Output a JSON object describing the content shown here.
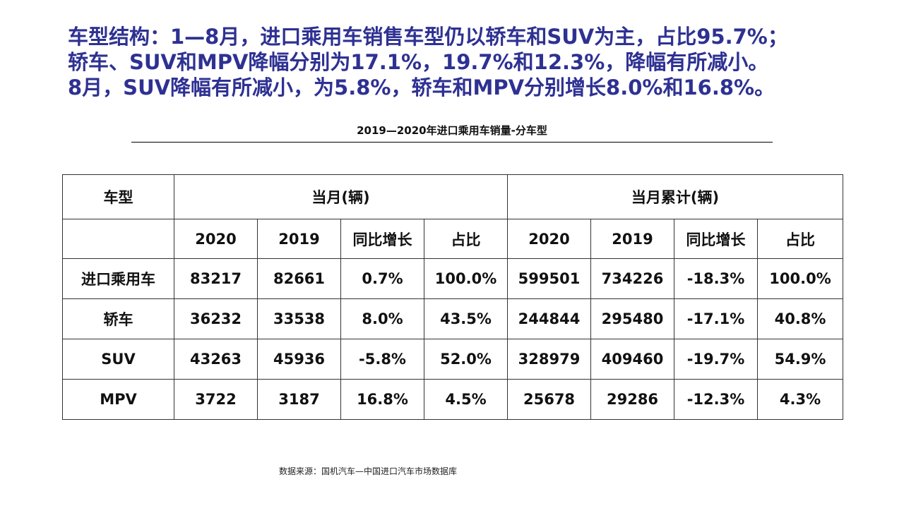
{
  "headline": {
    "line1": "车型结构：1—8月，进口乘用车销售车型仍以轿车和SUV为主，占比95.7%；",
    "line2": "轿车、SUV和MPV降幅分别为17.1%，19.7%和12.3%，降幅有所减小。",
    "line3": "8月，SUV降幅有所减小，为5.8%，轿车和MPV分别增长8.0%和16.8%。"
  },
  "table_title": "2019—2020年进口乘用车销量-分车型",
  "table": {
    "header_type": "车型",
    "group_month": "当月(辆)",
    "group_cumulative": "当月累计(辆)",
    "sub_headers": [
      "2020",
      "2019",
      "同比增长",
      "占比",
      "2020",
      "2019",
      "同比增长",
      "占比"
    ],
    "rows": [
      {
        "name": "进口乘用车",
        "cells": [
          "83217",
          "82661",
          "0.7%",
          "100.0%",
          "599501",
          "734226",
          "-18.3%",
          "100.0%"
        ]
      },
      {
        "name": "轿车",
        "cells": [
          "36232",
          "33538",
          "8.0%",
          "43.5%",
          "244844",
          "295480",
          "-17.1%",
          "40.8%"
        ]
      },
      {
        "name": "SUV",
        "cells": [
          "43263",
          "45936",
          "-5.8%",
          "52.0%",
          "328979",
          "409460",
          "-19.7%",
          "54.9%"
        ]
      },
      {
        "name": "MPV",
        "cells": [
          "3722",
          "3187",
          "16.8%",
          "4.5%",
          "25678",
          "29286",
          "-12.3%",
          "4.3%"
        ]
      }
    ]
  },
  "source": "数据来源：国机汽车—中国进口汽车市场数据库",
  "colors": {
    "headline": "#2e3192",
    "text": "#111111",
    "border": "#333333"
  }
}
